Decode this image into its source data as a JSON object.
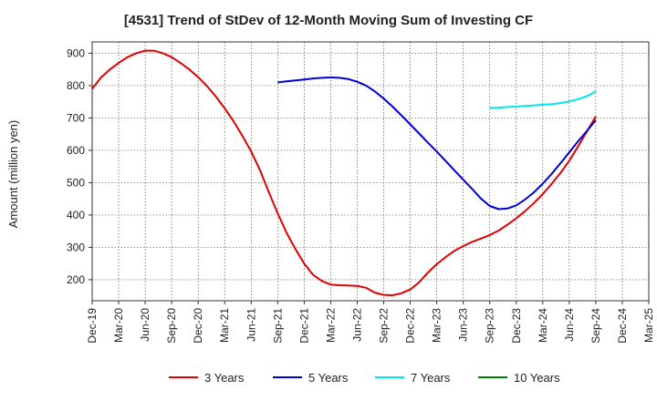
{
  "title": "[4531]  Trend of StDev of 12-Month Moving Sum of Investing CF",
  "chart_data": {
    "type": "line",
    "title": "[4531]  Trend of StDev of 12-Month Moving Sum of Investing CF",
    "xlabel": "",
    "ylabel": "Amount (million yen)",
    "ylim": [
      135,
      935
    ],
    "yticks": [
      200,
      300,
      400,
      500,
      600,
      700,
      800,
      900
    ],
    "x_categories": [
      "Dec-19",
      "Mar-20",
      "Jun-20",
      "Sep-20",
      "Dec-20",
      "Mar-21",
      "Jun-21",
      "Sep-21",
      "Dec-21",
      "Mar-22",
      "Jun-22",
      "Sep-22",
      "Dec-22",
      "Mar-23",
      "Jun-23",
      "Sep-23",
      "Dec-23",
      "Mar-24",
      "Jun-24",
      "Sep-24",
      "Dec-24",
      "Mar-25"
    ],
    "grid": true,
    "legend_position": "bottom",
    "series": [
      {
        "name": "3 Years",
        "color": "#e00000",
        "x": [
          "Dec-19",
          "Jan-20",
          "Feb-20",
          "Mar-20",
          "Apr-20",
          "May-20",
          "Jun-20",
          "Jul-20",
          "Aug-20",
          "Sep-20",
          "Oct-20",
          "Nov-20",
          "Dec-20",
          "Jan-21",
          "Feb-21",
          "Mar-21",
          "Apr-21",
          "May-21",
          "Jun-21",
          "Jul-21",
          "Aug-21",
          "Sep-21",
          "Oct-21",
          "Nov-21",
          "Dec-21",
          "Jan-22",
          "Feb-22",
          "Mar-22",
          "Apr-22",
          "May-22",
          "Jun-22",
          "Jul-22",
          "Aug-22",
          "Sep-22",
          "Oct-22",
          "Nov-22",
          "Dec-22",
          "Jan-23",
          "Feb-23",
          "Mar-23",
          "Apr-23",
          "May-23",
          "Jun-23",
          "Jul-23",
          "Aug-23",
          "Sep-23",
          "Oct-23",
          "Nov-23",
          "Dec-23",
          "Jan-24",
          "Feb-24",
          "Mar-24",
          "Apr-24",
          "May-24",
          "Jun-24",
          "Jul-24",
          "Aug-24",
          "Sep-24"
        ],
        "values": [
          790,
          825,
          850,
          870,
          888,
          900,
          908,
          908,
          900,
          888,
          870,
          850,
          826,
          798,
          766,
          730,
          690,
          645,
          596,
          538,
          470,
          405,
          345,
          295,
          250,
          215,
          196,
          185,
          183,
          182,
          181,
          175,
          160,
          153,
          152,
          158,
          170,
          192,
          222,
          248,
          270,
          289,
          304,
          317,
          327,
          338,
          352,
          370,
          390,
          412,
          437,
          465,
          496,
          530,
          568,
          612,
          658,
          705
        ]
      },
      {
        "name": "5 Years",
        "color": "#0000d0",
        "x": [
          "Sep-21",
          "Oct-21",
          "Nov-21",
          "Dec-21",
          "Jan-22",
          "Feb-22",
          "Mar-22",
          "Apr-22",
          "May-22",
          "Jun-22",
          "Jul-22",
          "Aug-22",
          "Sep-22",
          "Oct-22",
          "Nov-22",
          "Dec-22",
          "Jan-23",
          "Feb-23",
          "Mar-23",
          "Apr-23",
          "May-23",
          "Jun-23",
          "Jul-23",
          "Aug-23",
          "Sep-23",
          "Oct-23",
          "Nov-23",
          "Dec-23",
          "Jan-24",
          "Feb-24",
          "Mar-24",
          "Apr-24",
          "May-24",
          "Jun-24",
          "Jul-24",
          "Aug-24",
          "Sep-24"
        ],
        "values": [
          810,
          813,
          816,
          819,
          822,
          824,
          825,
          824,
          820,
          812,
          800,
          782,
          760,
          735,
          708,
          680,
          652,
          624,
          596,
          567,
          538,
          509,
          481,
          451,
          428,
          418,
          420,
          430,
          448,
          470,
          497,
          527,
          560,
          594,
          628,
          660,
          693
        ]
      },
      {
        "name": "7 Years",
        "color": "#00e5ee",
        "x": [
          "Sep-23",
          "Oct-23",
          "Nov-23",
          "Dec-23",
          "Jan-24",
          "Feb-24",
          "Mar-24",
          "Apr-24",
          "May-24",
          "Jun-24",
          "Jul-24",
          "Aug-24",
          "Sep-24"
        ],
        "values": [
          731,
          732,
          734,
          735,
          737,
          739,
          741,
          743,
          746,
          751,
          758,
          767,
          782
        ]
      },
      {
        "name": "10 Years",
        "color": "#008000",
        "x": [],
        "values": []
      }
    ]
  }
}
